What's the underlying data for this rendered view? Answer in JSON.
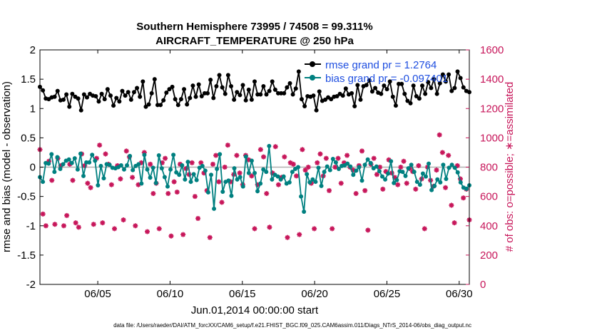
{
  "chart_data": {
    "type": "line",
    "title_line1": "Southern Hemisphere 73995 / 74508 = 99.311%",
    "title_line2": "AIRCRAFT_TEMPERATURE @ 250 hPa",
    "xlabel": "Jun.01,2014 00:00:00 start",
    "ylabel_left": "rmse and bias (model - observation)",
    "ylabel_right": "# of obs: o=possible; ∗=assimilated",
    "xlim": [
      1,
      30.7
    ],
    "ylim_left": [
      -2,
      2
    ],
    "ylim_right": [
      0,
      1600
    ],
    "x_ticks": [
      5,
      10,
      15,
      20,
      25,
      30
    ],
    "x_tick_labels": [
      "06/05",
      "06/10",
      "06/15",
      "06/20",
      "06/25",
      "06/30"
    ],
    "y_ticks_left": [
      -2,
      -1.5,
      -1,
      -0.5,
      0,
      0.5,
      1,
      1.5,
      2
    ],
    "y_ticks_left_labels": [
      "-2",
      "-1.5",
      "-1",
      "-0.5",
      "0",
      "0.5",
      "1",
      "1.5",
      "2"
    ],
    "y_ticks_right": [
      0,
      200,
      400,
      600,
      800,
      1000,
      1200,
      1400,
      1600
    ],
    "y_ticks_right_labels": [
      "0",
      "200",
      "400",
      "600",
      "800",
      "1000",
      "1200",
      "1400",
      "1600"
    ],
    "footnote": "data file: /Users/raeder/DAI/ATM_forcXX/CAM6_setup/f.e21.FHIST_BGC.f09_025.CAM6assim.011/Diags_NTrS_2014-06/obs_diag_output.nc",
    "colors": {
      "rmse": "#000000",
      "bias": "#008080",
      "obs": "#c7165a",
      "legend_text": "#1f4fe0",
      "zero_line": "#b0b0b0"
    },
    "series": [
      {
        "name": "rmse grand pr = 1.2764",
        "axis": "left",
        "marker": "filled-circle",
        "values": [
          1.37,
          1.31,
          1.17,
          1.16,
          1.19,
          1.2,
          1.3,
          1.14,
          1.15,
          1.24,
          1.03,
          1.25,
          1.2,
          1.17,
          0.97,
          1.24,
          1.19,
          1.25,
          1.22,
          1.21,
          1.12,
          1.25,
          1.16,
          1.33,
          1.22,
          1.05,
          1.18,
          1.12,
          1.3,
          1.22,
          1.28,
          1.15,
          1.28,
          1.35,
          1.2,
          1.46,
          1.03,
          1.07,
          1.26,
          1.5,
          1.06,
          1.06,
          1.14,
          1.27,
          1.33,
          1.37,
          1.16,
          1.06,
          1.16,
          1.33,
          1.07,
          1.18,
          1.39,
          1.2,
          1.41,
          1.21,
          1.26,
          1.26,
          1.49,
          1.18,
          1.38,
          1.57,
          1.36,
          1.25,
          1.57,
          1.38,
          1.15,
          1.28,
          1.23,
          1.4,
          1.14,
          1.32,
          1.15,
          1.46,
          1.24,
          1.24,
          1.38,
          1.24,
          1.3,
          1.46,
          1.32,
          1.26,
          1.26,
          1.26,
          1.36,
          1.43,
          1.24,
          1.34,
          1.63,
          1.16,
          1.04,
          1.21,
          1.2,
          1.22,
          0.97,
          1.29,
          1.13,
          1.15,
          1.19,
          1.16,
          1.2,
          1.21,
          1.25,
          1.22,
          1.34,
          1.24,
          1.26,
          1.04,
          1.4,
          1.15,
          1.38,
          1.4,
          1.48,
          1.29,
          1.35,
          1.27,
          1.25,
          1.39,
          1.33,
          1.46,
          1.2,
          1.05,
          1.42,
          1.42,
          1.25,
          1.13,
          1.09,
          1.39,
          1.21,
          1.17,
          1.39,
          1.25,
          1.45,
          1.35,
          1.5,
          1.25,
          1.43,
          1.58,
          1.46,
          1.58,
          1.3,
          1.35,
          1.63,
          1.52,
          1.36,
          1.3,
          1.28
        ]
      },
      {
        "name": "bias grand pr = -0.097401",
        "axis": "left",
        "marker": "filled-circle",
        "values": [
          -0.17,
          -0.25,
          0.07,
          0.06,
          0.22,
          -0.08,
          0.17,
          -0.03,
          0.05,
          0.11,
          0.13,
          0.07,
          0.15,
          -0.04,
          0.23,
          -0.15,
          0.08,
          0.08,
          0.21,
          0.11,
          -0.31,
          0.02,
          -0.19,
          0.05,
          0.04,
          -0.01,
          -0.02,
          0.0,
          0.03,
          -0.04,
          0.03,
          0.19,
          -0.05,
          0.02,
          0.05,
          -0.28,
          0.21,
          -0.04,
          -0.18,
          -0.01,
          -0.27,
          0.2,
          -0.02,
          -0.17,
          -0.33,
          -0.04,
          0.21,
          -0.09,
          -0.13,
          0.03,
          -0.21,
          0.09,
          -0.25,
          -0.12,
          -0.22,
          -0.01,
          0.02,
          -0.06,
          -0.43,
          -0.13,
          -0.71,
          -0.03,
          0.22,
          -0.42,
          -0.25,
          -0.23,
          -0.49,
          -0.02,
          -0.21,
          -0.17,
          -0.33,
          0.18,
          -0.1,
          0.11,
          -0.1,
          -0.41,
          -0.28,
          -0.04,
          -0.08,
          0.36,
          -0.21,
          -0.13,
          -0.16,
          -0.21,
          -0.16,
          -0.28,
          -0.26,
          -0.08,
          -0.03,
          0.0,
          -0.5,
          -0.76,
          -0.12,
          -0.26,
          -0.21,
          -0.25,
          -0.01,
          -0.32,
          -0.08,
          0.01,
          -0.05,
          0.14,
          0.08,
          -0.03,
          0.02,
          0.03,
          0.06,
          0.01,
          -0.13,
          -0.06,
          0.0,
          -0.23,
          0.04,
          0.13,
          0.07,
          -0.02,
          0.01,
          -0.07,
          -0.16,
          -0.21,
          -0.11,
          0.1,
          -0.27,
          -0.22,
          -0.07,
          -0.08,
          -0.15,
          -0.02,
          0.04,
          -0.08,
          -0.25,
          -0.3,
          -0.11,
          -0.16,
          0.06,
          -0.39,
          -0.32,
          -0.21,
          -0.26,
          0.04,
          -0.2,
          -0.01,
          0.04,
          -0.01,
          -0.09,
          -0.26,
          -0.35,
          -0.37,
          -0.31
        ]
      },
      {
        "name": "obs possible / assimilated",
        "axis": "right",
        "marker": "asterisk",
        "values": [
          920,
          480,
          400,
          840,
          710,
          410,
          860,
          810,
          400,
          470,
          820,
          710,
          420,
          390,
          890,
          810,
          690,
          660,
          410,
          860,
          950,
          420,
          890,
          820,
          680,
          380,
          810,
          720,
          440,
          910,
          870,
          730,
          400,
          680,
          830,
          900,
          360,
          820,
          620,
          690,
          380,
          830,
          860,
          620,
          330,
          700,
          630,
          820,
          340,
          790,
          750,
          830,
          600,
          450,
          830,
          760,
          640,
          320,
          820,
          880,
          700,
          560,
          800,
          950,
          700,
          750,
          880,
          760,
          680,
          880,
          850,
          740,
          380,
          680,
          920,
          870,
          620,
          390,
          760,
          940,
          680,
          730,
          870,
          320,
          830,
          820,
          740,
          340,
          920,
          780,
          800,
          690,
          380,
          830,
          890,
          740,
          860,
          640,
          380,
          800,
          860,
          690,
          830,
          880,
          800,
          780,
          620,
          810,
          910,
          640,
          370,
          820,
          860,
          750,
          800,
          650,
          770,
          850,
          760,
          730,
          680,
          800,
          840,
          690,
          790,
          770,
          650,
          810,
          720,
          380,
          800,
          710,
          670,
          780,
          1020,
          900,
          660,
          880,
          540,
          420,
          810,
          720,
          590,
          650,
          440
        ]
      }
    ]
  }
}
